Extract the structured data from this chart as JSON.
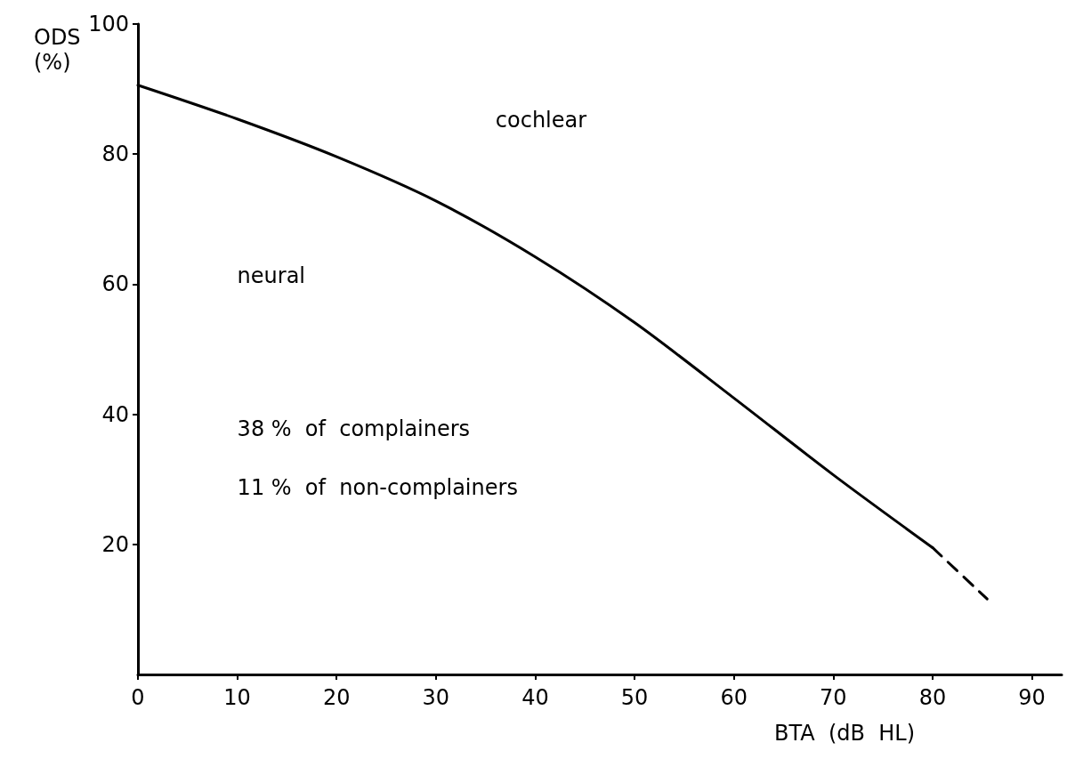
{
  "chart_data": {
    "type": "line",
    "xlabel": "BTA (dB HL)",
    "ylabel": "ODS (%)",
    "x": [
      0,
      10,
      20,
      30,
      40,
      50,
      60,
      70,
      80
    ],
    "series": [
      {
        "color": "#000000",
        "line_style": "solid",
        "values": [
          90.6,
          85.4,
          79.6,
          72.8,
          64.2,
          54.1,
          42.5,
          30.7,
          19.5
        ]
      },
      {
        "color": "#000000",
        "line_style": "dashed",
        "x": [
          80,
          85.5
        ],
        "values": [
          19.5,
          11.6
        ]
      }
    ],
    "xlim": [
      0,
      93
    ],
    "xticks": [
      0,
      10,
      20,
      30,
      40,
      50,
      60,
      70,
      80,
      90
    ],
    "ylim": [
      0,
      100
    ],
    "yticks": [
      20,
      40,
      60,
      80,
      100
    ],
    "annotations": [
      "cochlear",
      "neural",
      "38 %  of  complainers",
      "11 %  of  non-complainers"
    ],
    "marker": "none",
    "grid": false
  }
}
